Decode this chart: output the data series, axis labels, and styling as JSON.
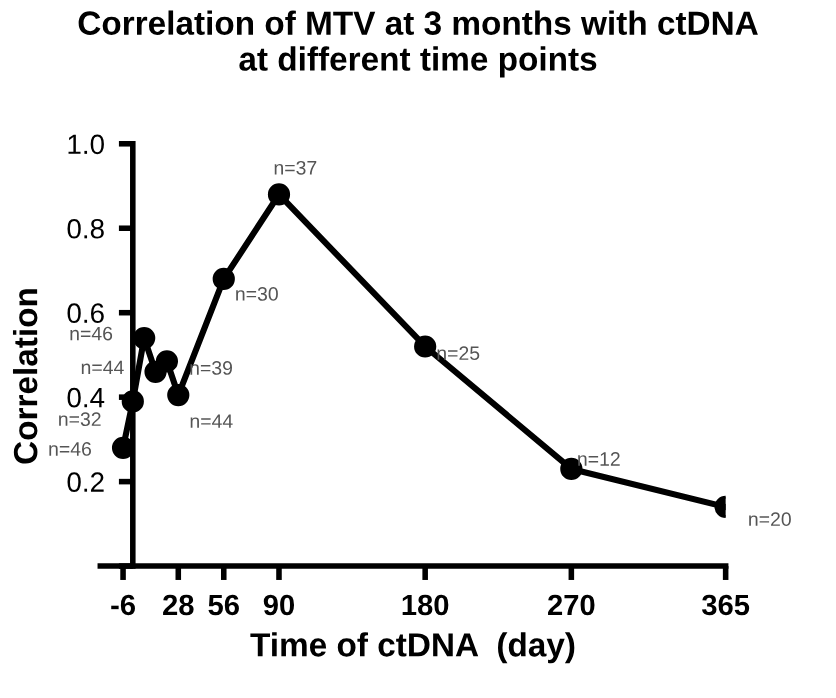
{
  "chart_data": {
    "type": "line",
    "title": "Correlation of MTV at 3 months with ctDNA\nat different time points",
    "xlabel": "Time of ctDNA  (day)",
    "ylabel": "Correlation",
    "series": [
      {
        "x": [
          -6,
          0,
          7,
          14,
          21,
          28,
          56,
          90,
          180,
          270,
          365
        ],
        "values": [
          0.28,
          0.39,
          0.54,
          0.46,
          0.485,
          0.405,
          0.68,
          0.88,
          0.52,
          0.23,
          0.14
        ],
        "color": "#000000"
      }
    ],
    "annotations": [
      {
        "text": "n=46",
        "x": -6,
        "y": 0.28
      },
      {
        "text": "n=32",
        "x": 0,
        "y": 0.39
      },
      {
        "text": "n=46",
        "x": 7,
        "y": 0.54
      },
      {
        "text": "n=44",
        "x": 14,
        "y": 0.46
      },
      {
        "text": "n=39",
        "x": 21,
        "y": 0.485
      },
      {
        "text": "n=44",
        "x": 28,
        "y": 0.405
      },
      {
        "text": "n=30",
        "x": 56,
        "y": 0.68
      },
      {
        "text": "n=37",
        "x": 90,
        "y": 0.88
      },
      {
        "text": "n=25",
        "x": 180,
        "y": 0.52
      },
      {
        "text": "n=12",
        "x": 270,
        "y": 0.23
      },
      {
        "text": "n=20",
        "x": 365,
        "y": 0.14
      }
    ],
    "xlim": [
      -20,
      365
    ],
    "ylim": [
      0,
      1.0
    ],
    "xticks": [
      -6,
      28,
      56,
      90,
      180,
      270,
      365
    ],
    "yticks": [
      {
        "value": 0,
        "label": null
      },
      0.2,
      0.4,
      0.6,
      0.8,
      {
        "value": 1.0,
        "label": "1.0"
      }
    ],
    "marker": "circle",
    "line_style": "solid",
    "grid": false,
    "legend": false
  }
}
